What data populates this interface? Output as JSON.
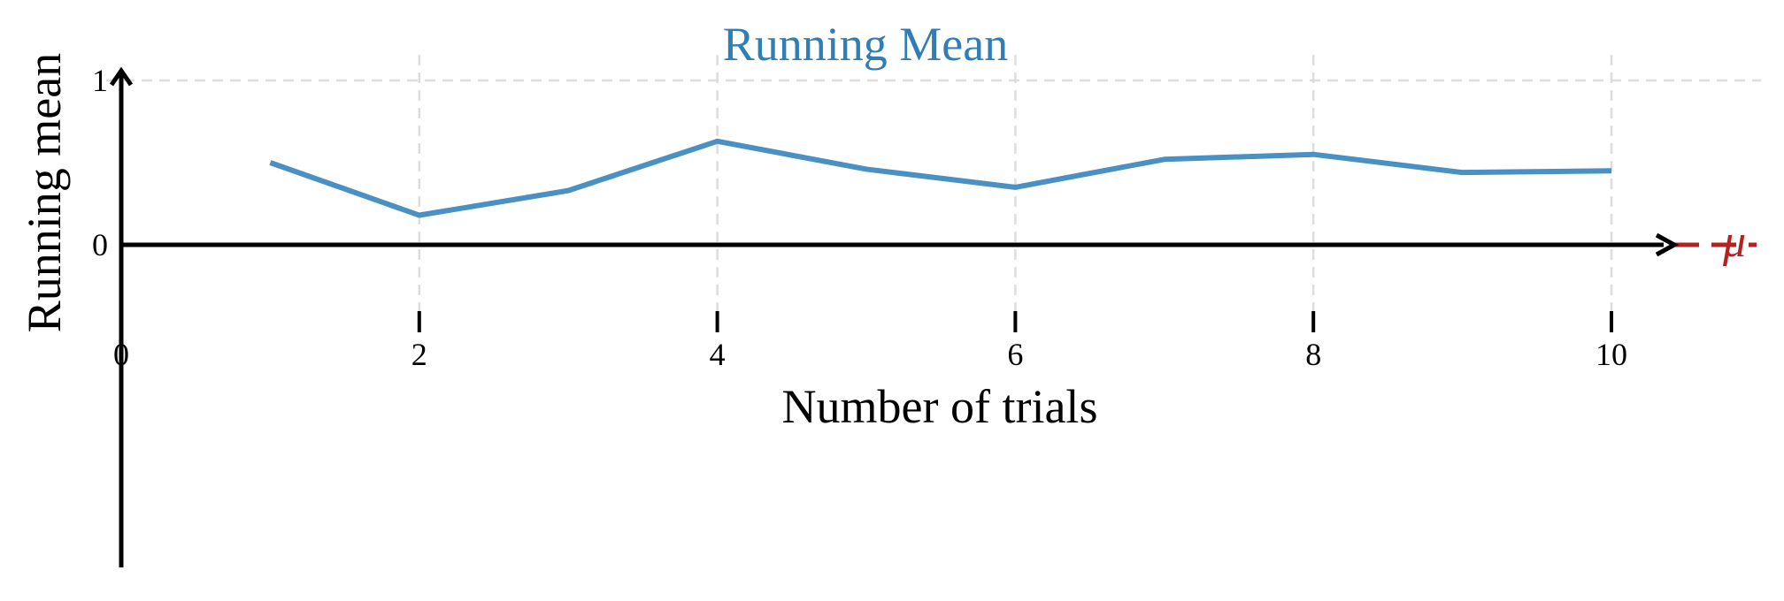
{
  "chart_data": {
    "type": "line",
    "title": "Running Mean",
    "xlabel": "Number of trials",
    "ylabel": "Running mean",
    "x_ticks": [
      "0",
      "2",
      "4",
      "6",
      "8",
      "10"
    ],
    "y_ticks": [
      "0",
      "1"
    ],
    "xlim": [
      0,
      11.2
    ],
    "ylim": [
      -2,
      1
    ],
    "grid": true,
    "series": [
      {
        "x": [
          1,
          2,
          3,
          4,
          5,
          6,
          7,
          8,
          9,
          10
        ],
        "values": [
          0.5,
          0.18,
          0.33,
          0.63,
          0.46,
          0.35,
          0.52,
          0.55,
          0.44,
          0.45
        ]
      }
    ],
    "reference_line": {
      "label": "μ",
      "y": 0
    },
    "colors": {
      "line": "#4a90c2",
      "title": "#2f7fb6",
      "reference": "#b22222",
      "axis": "#000000",
      "grid": "#dddddd"
    }
  }
}
